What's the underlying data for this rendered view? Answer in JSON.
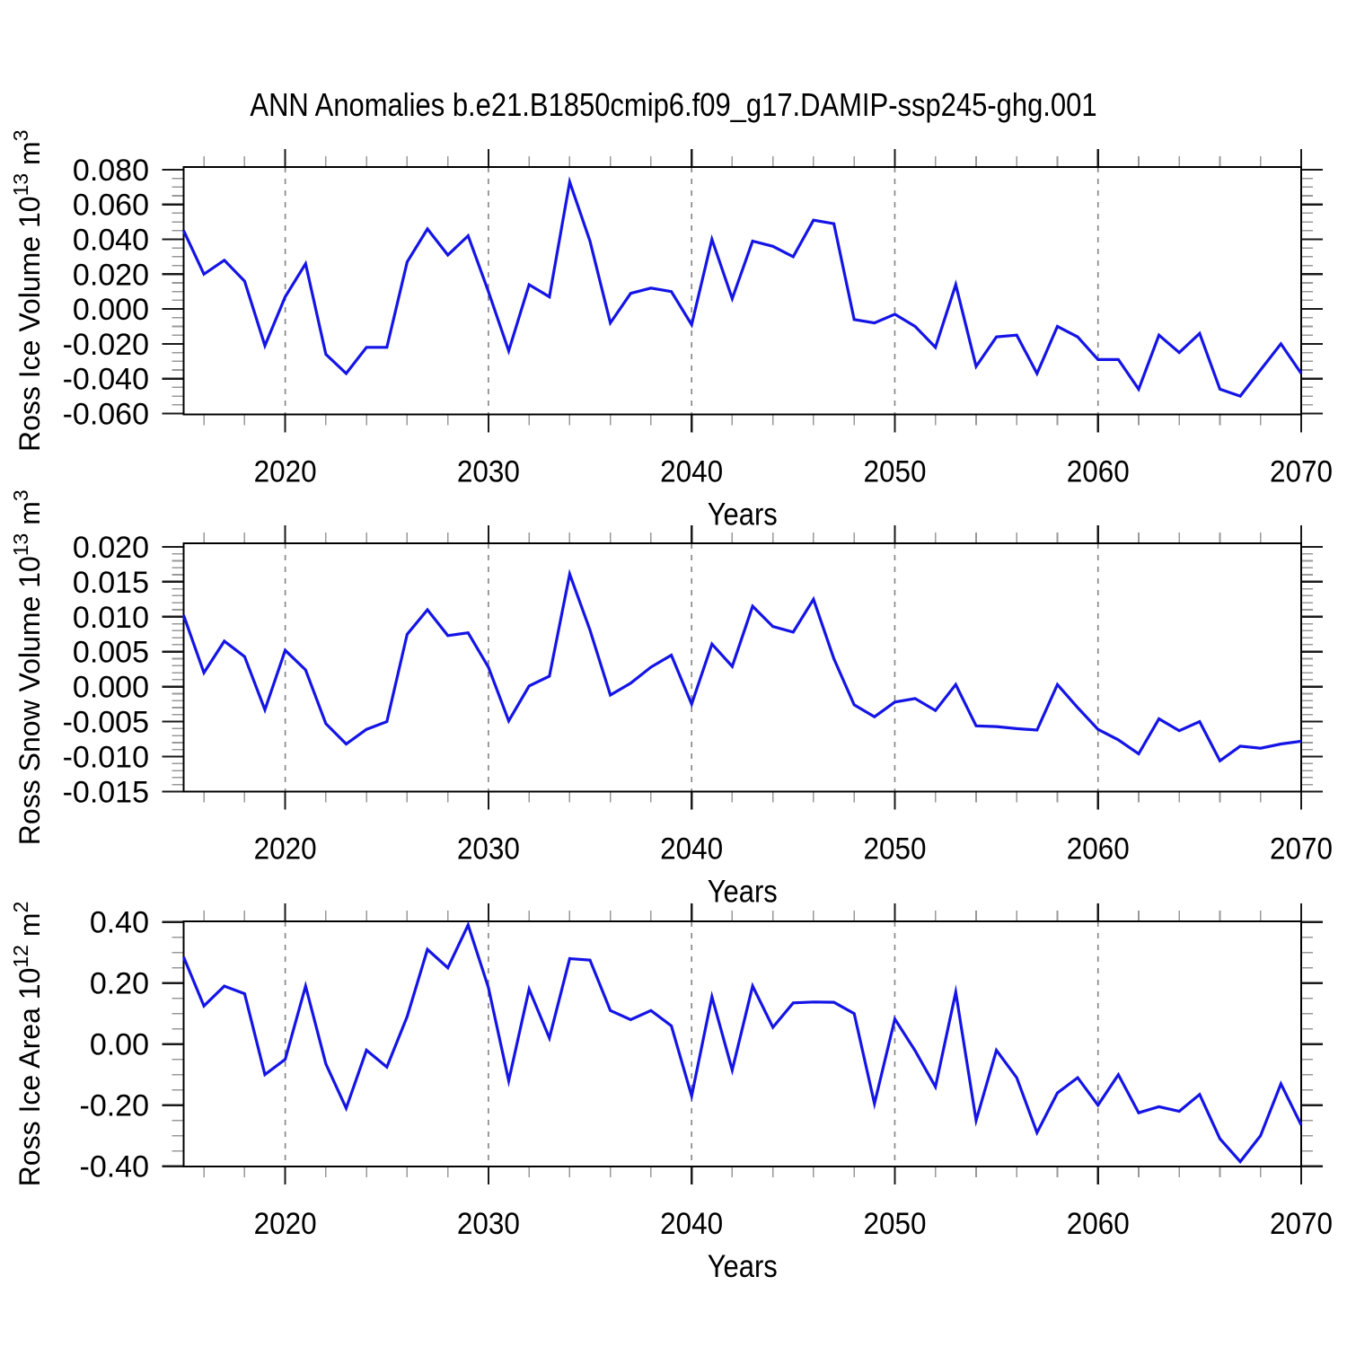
{
  "title": "ANN Anomalies b.e21.B1850cmip6.f09_g17.DAMIP-ssp245-ghg.001",
  "xlabel": "Years",
  "colors": {
    "line": "#1414e6",
    "frame": "#000000",
    "major_tick": "#1a1a1a",
    "minor_tick": "#999999",
    "grid": "#848484",
    "background": "#ffffff"
  },
  "chart_data": {
    "type": "line",
    "title": "ANN Anomalies b.e21.B1850cmip6.f09_g17.DAMIP-ssp245-ghg.001",
    "xlabel": "Years",
    "xlim": [
      2015,
      2070
    ],
    "x_major_ticks": [
      2020,
      2030,
      2040,
      2050,
      2060,
      2070
    ],
    "x_minor_tick_step": 2,
    "grid_x_dashed": [
      2020,
      2030,
      2040,
      2050,
      2060
    ],
    "legend": "none",
    "x": [
      2015,
      2016,
      2017,
      2018,
      2019,
      2020,
      2021,
      2022,
      2023,
      2024,
      2025,
      2026,
      2027,
      2028,
      2029,
      2030,
      2031,
      2032,
      2033,
      2034,
      2035,
      2036,
      2037,
      2038,
      2039,
      2040,
      2041,
      2042,
      2043,
      2044,
      2045,
      2046,
      2047,
      2048,
      2049,
      2050,
      2051,
      2052,
      2053,
      2054,
      2055,
      2056,
      2057,
      2058,
      2059,
      2060,
      2061,
      2062,
      2063,
      2064,
      2065,
      2066,
      2067,
      2068,
      2069,
      2070
    ],
    "series": [
      {
        "name": "Ross Ice Volume 10^13 m^3",
        "ylabel_parts": [
          {
            "t": "Ross Ice Volume 10",
            "sup": false
          },
          {
            "t": "13",
            "sup": true
          },
          {
            "t": " m",
            "sup": false
          },
          {
            "t": "3",
            "sup": true
          }
        ],
        "ylim": [
          -0.0605,
          0.0815
        ],
        "yticks": [
          0.08,
          0.06,
          0.04,
          0.02,
          0.0,
          -0.02,
          -0.04,
          -0.06
        ],
        "ytick_decimals": 3,
        "yminor_step": 0.005,
        "values": [
          0.045,
          0.02,
          0.028,
          0.016,
          -0.021,
          0.007,
          0.026,
          -0.026,
          -0.037,
          -0.022,
          -0.022,
          0.027,
          0.046,
          0.031,
          0.042,
          0.01,
          -0.024,
          0.014,
          0.007,
          0.073,
          0.039,
          -0.008,
          0.009,
          0.012,
          0.01,
          -0.009,
          0.04,
          0.006,
          0.039,
          0.036,
          0.03,
          0.051,
          0.049,
          -0.006,
          -0.008,
          -0.003,
          -0.01,
          -0.022,
          0.014,
          -0.033,
          -0.016,
          -0.015,
          -0.037,
          -0.01,
          -0.016,
          -0.029,
          -0.029,
          -0.046,
          -0.015,
          -0.025,
          -0.014,
          -0.046,
          -0.05,
          -0.035,
          -0.02,
          -0.037
        ]
      },
      {
        "name": "Ross Snow Volume 10^13 m^3",
        "ylabel_parts": [
          {
            "t": "Ross Snow Volume 10",
            "sup": false
          },
          {
            "t": "13",
            "sup": true
          },
          {
            "t": " m",
            "sup": false
          },
          {
            "t": "3",
            "sup": true
          }
        ],
        "ylim": [
          -0.015,
          0.0205
        ],
        "yticks": [
          0.02,
          0.015,
          0.01,
          0.005,
          0.0,
          -0.005,
          -0.01,
          -0.015
        ],
        "ytick_decimals": 3,
        "yminor_step": 0.001,
        "values": [
          0.0102,
          0.002,
          0.0065,
          0.0043,
          -0.0033,
          0.0052,
          0.0024,
          -0.0053,
          -0.0082,
          -0.0061,
          -0.005,
          0.0075,
          0.011,
          0.0073,
          0.0077,
          0.0028,
          -0.0049,
          0.0001,
          0.0015,
          0.0161,
          0.0081,
          -0.0012,
          0.0005,
          0.0028,
          0.0045,
          -0.0025,
          0.0061,
          0.0029,
          0.0115,
          0.0086,
          0.0078,
          0.0125,
          0.004,
          -0.0026,
          -0.0043,
          -0.0022,
          -0.0017,
          -0.0034,
          0.0003,
          -0.0056,
          -0.0057,
          -0.006,
          -0.0062,
          0.0003,
          -0.003,
          -0.0061,
          -0.0076,
          -0.0096,
          -0.0046,
          -0.0063,
          -0.005,
          -0.0106,
          -0.0085,
          -0.0088,
          -0.0082,
          -0.0078
        ]
      },
      {
        "name": "Ross Ice Area 10^12 m^2",
        "ylabel_parts": [
          {
            "t": "Ross Ice Area 10",
            "sup": false
          },
          {
            "t": "12",
            "sup": true
          },
          {
            "t": " m",
            "sup": false
          },
          {
            "t": "2",
            "sup": true
          }
        ],
        "ylim": [
          -0.401,
          0.402
        ],
        "yticks": [
          0.4,
          0.2,
          0.0,
          -0.2,
          -0.4
        ],
        "ytick_decimals": 2,
        "yminor_step": 0.05,
        "values": [
          0.285,
          0.125,
          0.19,
          0.165,
          -0.1,
          -0.05,
          0.19,
          -0.065,
          -0.21,
          -0.02,
          -0.075,
          0.09,
          0.31,
          0.25,
          0.39,
          0.185,
          -0.12,
          0.18,
          0.02,
          0.28,
          0.275,
          0.11,
          0.08,
          0.11,
          0.06,
          -0.17,
          0.155,
          -0.085,
          0.19,
          0.055,
          0.135,
          0.138,
          0.137,
          0.1,
          -0.195,
          0.082,
          -0.022,
          -0.14,
          0.17,
          -0.25,
          -0.02,
          -0.11,
          -0.29,
          -0.16,
          -0.11,
          -0.2,
          -0.1,
          -0.225,
          -0.205,
          -0.22,
          -0.165,
          -0.31,
          -0.385,
          -0.3,
          -0.13,
          -0.265
        ]
      }
    ]
  }
}
